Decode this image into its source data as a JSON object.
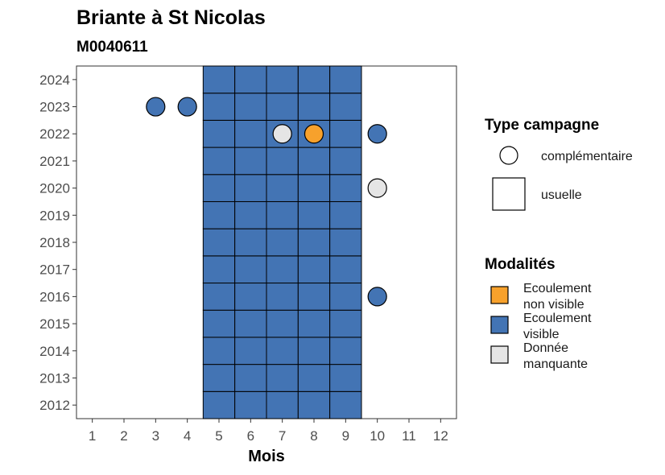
{
  "chart_data": {
    "type": "heatmap",
    "title": "Briante à St Nicolas",
    "subtitle": "M0040611",
    "xlabel": "Mois",
    "ylabel": "",
    "x_ticks": [
      "1",
      "2",
      "3",
      "4",
      "5",
      "6",
      "7",
      "8",
      "9",
      "10",
      "11",
      "12"
    ],
    "y_ticks": [
      "2012",
      "2013",
      "2014",
      "2015",
      "2016",
      "2017",
      "2018",
      "2019",
      "2020",
      "2021",
      "2022",
      "2023",
      "2024"
    ],
    "xlim": [
      0.5,
      12.5
    ],
    "ylim": [
      2011.5,
      2024.5
    ],
    "grid": false,
    "legend_position": "right",
    "colors": {
      "Ecoulement non visible": "#F7A12C",
      "Ecoulement visible": "#4374B4",
      "Donnée manquante": "#E5E5E5"
    },
    "usuelle_cells": {
      "months": [
        5,
        6,
        7,
        8,
        9
      ],
      "years": [
        2012,
        2024
      ],
      "modalite": "Ecoulement visible"
    },
    "complementaire_points": [
      {
        "mois": 3,
        "annee": 2023,
        "modalite": "Ecoulement visible"
      },
      {
        "mois": 4,
        "annee": 2023,
        "modalite": "Ecoulement visible"
      },
      {
        "mois": 7,
        "annee": 2022,
        "modalite": "Donnée manquante"
      },
      {
        "mois": 8,
        "annee": 2022,
        "modalite": "Ecoulement non visible"
      },
      {
        "mois": 10,
        "annee": 2022,
        "modalite": "Ecoulement visible"
      },
      {
        "mois": 10,
        "annee": 2020,
        "modalite": "Donnée manquante"
      },
      {
        "mois": 10,
        "annee": 2016,
        "modalite": "Ecoulement visible"
      }
    ],
    "legends": {
      "type_campagne": {
        "title": "Type campagne",
        "items": [
          "complémentaire",
          "usuelle"
        ]
      },
      "modalites": {
        "title": "Modalités",
        "items": [
          {
            "lines": [
              "Ecoulement",
              "non visible"
            ],
            "key": "Ecoulement non visible"
          },
          {
            "lines": [
              "Ecoulement",
              "visible"
            ],
            "key": "Ecoulement visible"
          },
          {
            "lines": [
              "Donnée",
              "manquante"
            ],
            "key": "Donnée manquante"
          }
        ]
      }
    }
  }
}
